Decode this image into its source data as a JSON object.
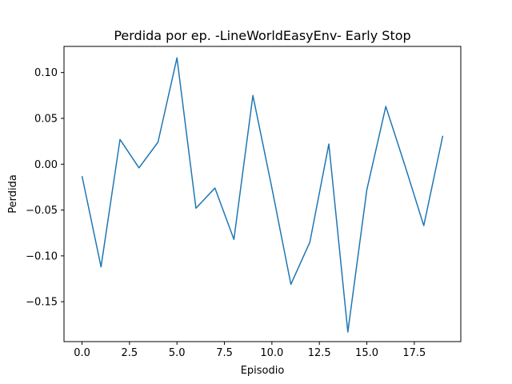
{
  "chart_data": {
    "type": "line",
    "title": "Perdida por ep. -LineWorldEasyEnv- Early Stop",
    "xlabel": "Episodio",
    "ylabel": "Perdida",
    "xlim": [
      -0.95,
      19.95
    ],
    "ylim": [
      -0.1935,
      0.1285
    ],
    "xticks": [
      0.0,
      2.5,
      5.0,
      7.5,
      10.0,
      12.5,
      15.0,
      17.5
    ],
    "xtick_labels": [
      "0.0",
      "2.5",
      "5.0",
      "7.5",
      "10.0",
      "12.5",
      "15.0",
      "17.5"
    ],
    "yticks": [
      -0.15,
      -0.1,
      -0.05,
      0.0,
      0.05,
      0.1
    ],
    "ytick_labels": [
      "−0.15",
      "−0.10",
      "−0.05",
      "0.00",
      "0.05",
      "0.10"
    ],
    "grid": false,
    "line_color": "#1f77b4",
    "series": [
      {
        "x": [
          0,
          1,
          2,
          3,
          4,
          5,
          6,
          7,
          8,
          9,
          10,
          11,
          12,
          13,
          14,
          15,
          16,
          17,
          18,
          19
        ],
        "values": [
          -0.013,
          -0.112,
          0.027,
          -0.004,
          0.024,
          0.116,
          -0.048,
          -0.026,
          -0.082,
          0.075,
          -0.026,
          -0.131,
          -0.085,
          0.022,
          -0.183,
          -0.028,
          0.063,
          -0.001,
          -0.067,
          0.031
        ]
      }
    ]
  }
}
